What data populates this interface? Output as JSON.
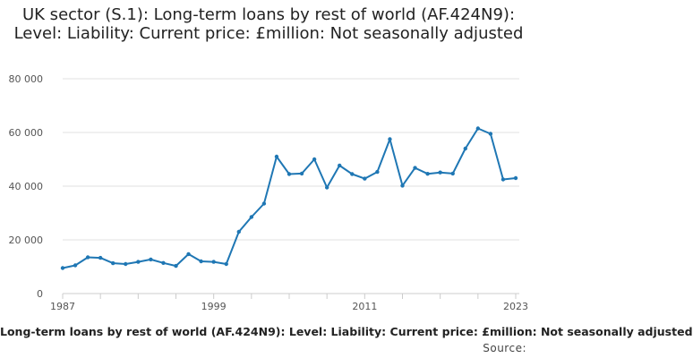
{
  "chart_data": {
    "type": "line",
    "title": "UK sector (S.1): Long-term loans by rest of world (AF.424N9): Level: Liability: Current price: £million: Not seasonally adjusted",
    "xlabel": "Long-term loans by rest of world (AF.424N9): Level: Liability: Current price: £million: Not seasonally adjusted",
    "ylabel": "",
    "source_label": "Source:",
    "x": [
      1987,
      1988,
      1989,
      1990,
      1991,
      1992,
      1993,
      1994,
      1995,
      1996,
      1997,
      1998,
      1999,
      2000,
      2001,
      2002,
      2003,
      2004,
      2005,
      2006,
      2007,
      2008,
      2009,
      2010,
      2011,
      2012,
      2013,
      2014,
      2015,
      2016,
      2017,
      2018,
      2019,
      2020,
      2021,
      2022,
      2023
    ],
    "series": [
      {
        "name": "",
        "color": "#1f77b4",
        "values": [
          9500,
          10500,
          13500,
          13300,
          11300,
          11000,
          11800,
          12700,
          11400,
          10300,
          14700,
          12000,
          11800,
          11000,
          23000,
          28500,
          33500,
          51000,
          44500,
          44700,
          50000,
          39500,
          47700,
          44500,
          42800,
          45300,
          57500,
          40200,
          46800,
          44600,
          45100,
          44700,
          54000,
          61500,
          59500,
          42500,
          43000
        ]
      }
    ],
    "xticks": [
      "1987",
      "1999",
      "2011",
      "2023"
    ],
    "yticks": [
      "0",
      "20 000",
      "40 000",
      "60 000",
      "80 000"
    ],
    "ytick_values": [
      0,
      20000,
      40000,
      60000,
      80000
    ],
    "xlim": [
      1987,
      2023
    ],
    "ylim": [
      0,
      80000
    ],
    "grid": true
  }
}
